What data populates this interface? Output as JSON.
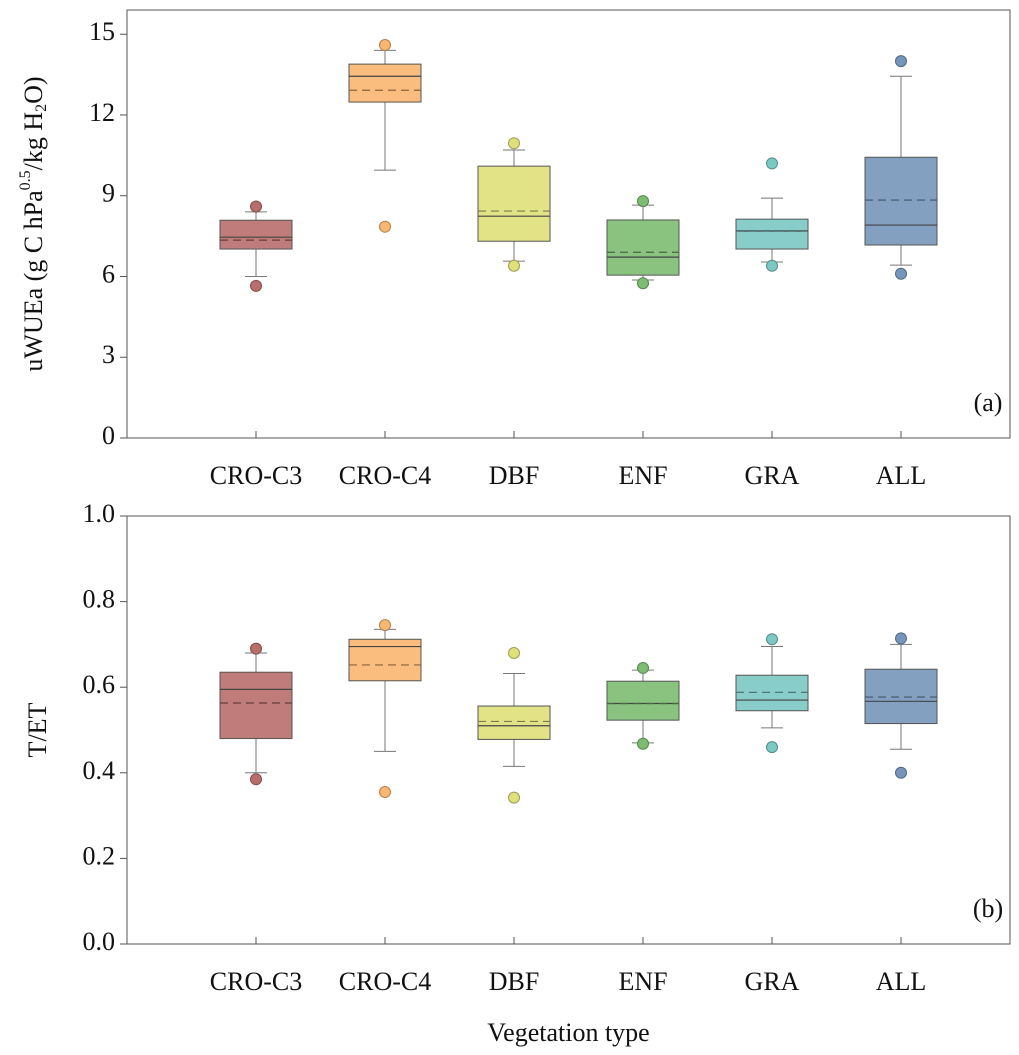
{
  "chart_data": [
    {
      "type": "box",
      "panel_label": "(a)",
      "ylabel_parts": [
        "uWUEa (g C hPa",
        "0.5",
        "/kg H",
        "2",
        "O)"
      ],
      "categories": [
        "CRO-C3",
        "CRO-C4",
        "DBF",
        "ENF",
        "GRA",
        "ALL"
      ],
      "colors": [
        "#b86e6c",
        "#fbb66f",
        "#dfe07a",
        "#7dbd72",
        "#7cc8c4",
        "#7596ba"
      ],
      "boxes": [
        {
          "min": 6.0,
          "q1": 7.02,
          "median": 7.46,
          "q3": 8.09,
          "max": 8.4,
          "mean": 7.35,
          "outliers": [
            8.6,
            5.65
          ]
        },
        {
          "min": 9.95,
          "q1": 12.48,
          "median": 13.44,
          "q3": 13.89,
          "max": 14.4,
          "mean": 12.92,
          "outliers": [
            14.6,
            7.85
          ]
        },
        {
          "min": 6.57,
          "q1": 7.31,
          "median": 8.24,
          "q3": 10.1,
          "max": 10.7,
          "mean": 8.43,
          "outliers": [
            10.95,
            6.4
          ]
        },
        {
          "min": 5.87,
          "q1": 6.05,
          "median": 6.72,
          "q3": 8.1,
          "max": 8.65,
          "mean": 6.9,
          "outliers": [
            8.8,
            5.75
          ]
        },
        {
          "min": 6.54,
          "q1": 7.02,
          "median": 7.69,
          "q3": 8.13,
          "max": 8.91,
          "mean": 7.7,
          "outliers": [
            10.2,
            6.4
          ]
        },
        {
          "min": 6.42,
          "q1": 7.17,
          "median": 7.91,
          "q3": 10.43,
          "max": 13.44,
          "mean": 8.84,
          "outliers": [
            14.0,
            6.1
          ]
        }
      ],
      "ylim": [
        0,
        15.9
      ],
      "yticks": [
        0,
        3,
        6,
        9,
        12,
        15
      ]
    },
    {
      "type": "box",
      "panel_label": "(b)",
      "ylabel": "T/ET",
      "xlabel": "Vegetation type",
      "categories": [
        "CRO-C3",
        "CRO-C4",
        "DBF",
        "ENF",
        "GRA",
        "ALL"
      ],
      "colors": [
        "#b86e6c",
        "#fbb66f",
        "#dfe07a",
        "#7dbd72",
        "#7cc8c4",
        "#7596ba"
      ],
      "boxes": [
        {
          "min": 0.4,
          "q1": 0.48,
          "median": 0.595,
          "q3": 0.635,
          "max": 0.68,
          "mean": 0.563,
          "outliers": [
            0.69,
            0.385
          ]
        },
        {
          "min": 0.45,
          "q1": 0.615,
          "median": 0.695,
          "q3": 0.712,
          "max": 0.735,
          "mean": 0.652,
          "outliers": [
            0.745,
            0.355
          ]
        },
        {
          "min": 0.415,
          "q1": 0.478,
          "median": 0.51,
          "q3": 0.556,
          "max": 0.632,
          "mean": 0.52,
          "outliers": [
            0.68,
            0.342
          ]
        },
        {
          "min": 0.47,
          "q1": 0.523,
          "median": 0.562,
          "q3": 0.614,
          "max": 0.64,
          "mean": 0.562,
          "outliers": [
            0.645,
            0.468
          ]
        },
        {
          "min": 0.505,
          "q1": 0.545,
          "median": 0.57,
          "q3": 0.628,
          "max": 0.695,
          "mean": 0.588,
          "outliers": [
            0.712,
            0.46
          ]
        },
        {
          "min": 0.455,
          "q1": 0.515,
          "median": 0.567,
          "q3": 0.642,
          "max": 0.7,
          "mean": 0.577,
          "outliers": [
            0.714,
            0.4
          ]
        }
      ],
      "ylim": [
        0,
        1
      ],
      "yticks": [
        {
          "value": 0,
          "label": "0.0"
        },
        0.2,
        0.4,
        0.6,
        0.8,
        {
          "value": 1,
          "label": "1.0"
        }
      ]
    }
  ]
}
